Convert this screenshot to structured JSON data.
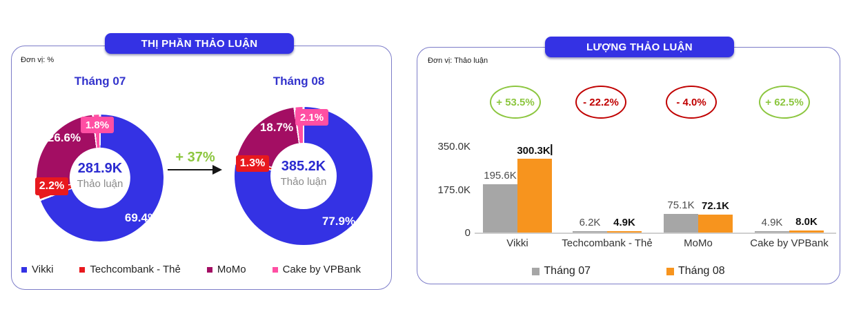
{
  "panels": {
    "left": {
      "title": "THỊ PHẦN THẢO LUẬN",
      "unit_label": "Đơn vị: %"
    },
    "right": {
      "title": "LƯỢNG THẢO LUẬN",
      "unit_label": "Đơn vị: Thảo luận"
    }
  },
  "colors": {
    "vikki_blue": "#3432e4",
    "techcombank_red": "#e8191e",
    "momo_magenta": "#a30e63",
    "cake_pink": "#ff4fa3",
    "thang07_gray": "#a6a6a6",
    "thang08_orange": "#f7941e",
    "growth_green": "#8cc63f",
    "decline_red": "#c00000",
    "title_blue": "#3432e4"
  },
  "chart_data": [
    {
      "type": "pie",
      "subtype": "donut-pair",
      "title": "THỊ PHẦN THẢO LUẬN",
      "unit": "%",
      "change_annotation": "+ 37%",
      "legend": [
        "Vikki",
        "Techcombank - Thẻ",
        "MoMo",
        "Cake by VPBank"
      ],
      "series_colors": {
        "Vikki": "#3432e4",
        "Techcombank - Thẻ": "#e8191e",
        "MoMo": "#a30e63",
        "Cake by VPBank": "#ff4fa3"
      },
      "donuts": [
        {
          "month": "Tháng 07",
          "total_label": "281.9K",
          "total_sublabel": "Thảo luận",
          "slices": [
            {
              "name": "Vikki",
              "value": 69.4,
              "label": "69.4%"
            },
            {
              "name": "Techcombank - Thẻ",
              "value": 2.2,
              "label": "2.2%"
            },
            {
              "name": "MoMo",
              "value": 26.6,
              "label": "26.6%"
            },
            {
              "name": "Cake by VPBank",
              "value": 1.8,
              "label": "1.8%"
            }
          ]
        },
        {
          "month": "Tháng 08",
          "total_label": "385.2K",
          "total_sublabel": "Thảo luận",
          "slices": [
            {
              "name": "Vikki",
              "value": 77.9,
              "label": "77.9%"
            },
            {
              "name": "Techcombank - Thẻ",
              "value": 1.3,
              "label": "1.3%"
            },
            {
              "name": "MoMo",
              "value": 18.7,
              "label": "18.7%"
            },
            {
              "name": "Cake by VPBank",
              "value": 2.1,
              "label": "2.1%"
            }
          ]
        }
      ]
    },
    {
      "type": "bar",
      "title": "LƯỢNG THẢO LUẬN",
      "unit": "Thảo luận",
      "categories": [
        "Vikki",
        "Techcombank - Thẻ",
        "MoMo",
        "Cake by VPBank"
      ],
      "series": [
        {
          "name": "Tháng 07",
          "color": "#a6a6a6",
          "values": [
            195.6,
            6.2,
            75.1,
            4.9
          ],
          "value_labels": [
            "195.6K",
            "6.2K",
            "75.1K",
            "4.9K"
          ]
        },
        {
          "name": "Tháng 08",
          "color": "#f7941e",
          "values": [
            300.3,
            4.9,
            72.1,
            8.0
          ],
          "value_labels": [
            "300.3K",
            "4.9K",
            "72.1K",
            "8.0K"
          ]
        }
      ],
      "growth_badges": [
        {
          "label": "+ 53.5%",
          "direction": "up"
        },
        {
          "label": "- 22.2%",
          "direction": "down"
        },
        {
          "label": "- 4.0%",
          "direction": "down"
        },
        {
          "label": "+ 62.5%",
          "direction": "up"
        }
      ],
      "y_axis": {
        "ticks": [
          "350.0K",
          "175.0K",
          "0"
        ],
        "min": 0,
        "max": 350
      },
      "legend_position": "bottom"
    }
  ]
}
